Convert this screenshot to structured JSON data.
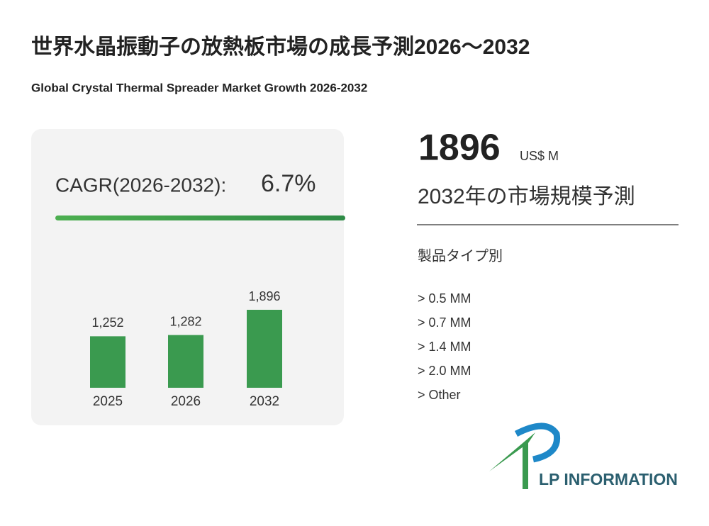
{
  "title": "世界水晶振動子の放熱板市場の成長予測2026～2032",
  "subtitle": "Global Crystal Thermal Spreader Market Growth 2026-2032",
  "cagr": {
    "label": "CAGR(2026-2032):",
    "value": "6.7%"
  },
  "market": {
    "value": 1896,
    "unit": "US$ M",
    "label": "2032年の市場規模予測"
  },
  "segments": {
    "title": "製品タイプ別",
    "items": [
      "> 0.5 MM",
      "> 0.7 MM",
      "> 1.4 MM",
      "> 2.0 MM",
      "> Other"
    ]
  },
  "logo": "LP INFORMATION",
  "chart_data": {
    "type": "bar",
    "categories": [
      "2025",
      "2026",
      "2032"
    ],
    "values": [
      1252,
      1282,
      1896
    ],
    "value_labels": [
      "1,252",
      "1,282",
      "1,896"
    ],
    "color": "#3a9a4f"
  }
}
